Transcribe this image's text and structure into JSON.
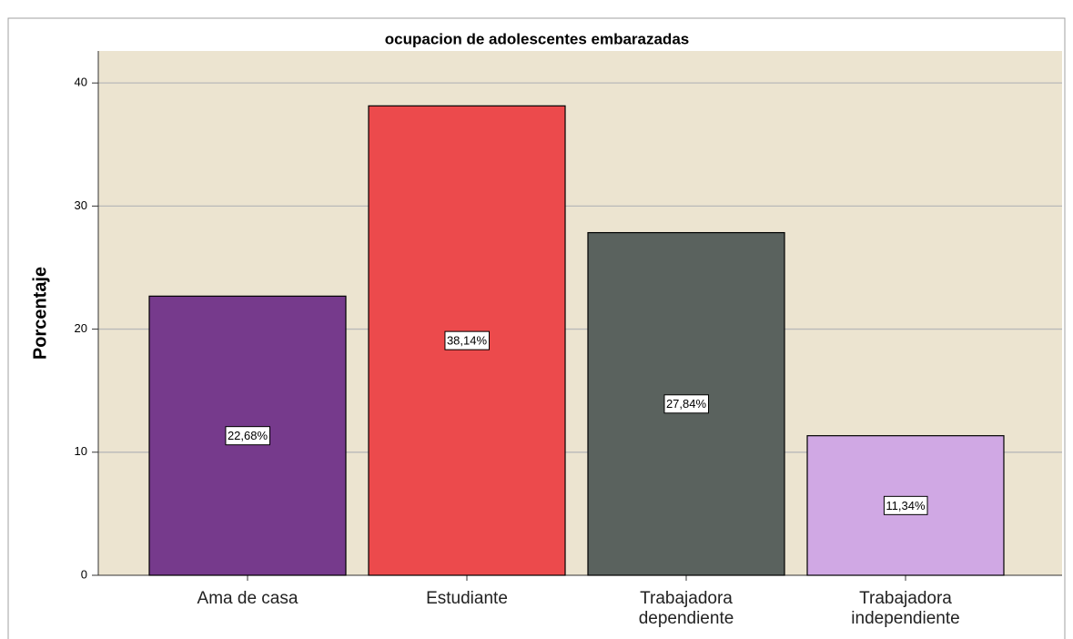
{
  "chart_data": {
    "type": "bar",
    "title": "ocupacion de adolescentes embarazadas",
    "y_label": "Porcentaje",
    "categories": [
      "Ama de casa",
      "Estudiante",
      "Trabajadora\ndependiente",
      "Trabajadora\nindependiente"
    ],
    "values": [
      22.68,
      38.14,
      27.84,
      11.34
    ],
    "value_labels": [
      "22,68%",
      "38,14%",
      "27,84%",
      "11,34%"
    ],
    "colors": [
      "#763a8c",
      "#ec4a4c",
      "#5a625e",
      "#d0a8e4"
    ],
    "ylim": [
      0,
      42.6
    ],
    "yticks": [
      0,
      10,
      20,
      30,
      40
    ],
    "grid": true
  }
}
